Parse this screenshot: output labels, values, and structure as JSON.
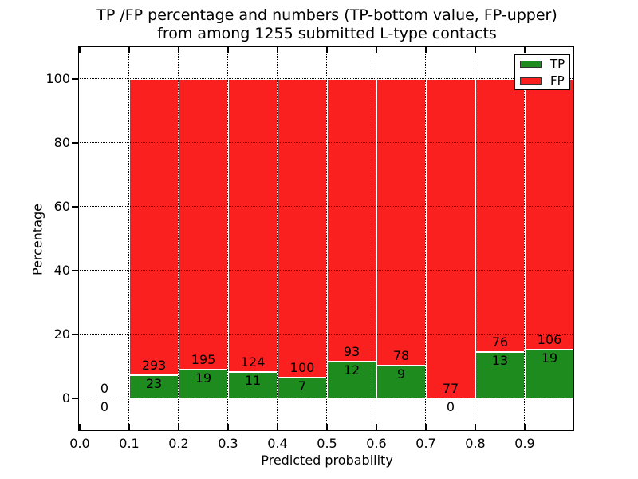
{
  "chart_data": {
    "type": "bar",
    "stacked": true,
    "title_line1": "TP /FP percentage and numbers (TP-bottom value, FP-upper)",
    "title_line2": "from among 1255 submitted L-type contacts",
    "xlabel": "Predicted probability",
    "ylabel": "Percentage",
    "total_submitted_contacts": 1255,
    "x_tick_labels": [
      "0.0",
      "0.1",
      "0.2",
      "0.3",
      "0.4",
      "0.5",
      "0.6",
      "0.7",
      "0.8",
      "0.9"
    ],
    "y_tick_values": [
      0,
      20,
      40,
      60,
      80,
      100
    ],
    "xlim": [
      0.0,
      1.0
    ],
    "ylim": [
      -10,
      110
    ],
    "grid": "dotted, both axes, drawn over bars",
    "bar_width": 0.1,
    "legend": {
      "position": "upper right",
      "entries": [
        {
          "label": "TP",
          "color": "#1e8b1e"
        },
        {
          "label": "FP",
          "color": "#fb2020"
        }
      ]
    },
    "bins": [
      {
        "x_start": 0.0,
        "x_end": 0.1,
        "tp": 0,
        "fp": 0,
        "tp_pct": 0.0,
        "fp_pct": 0.0,
        "bar": false
      },
      {
        "x_start": 0.1,
        "x_end": 0.2,
        "tp": 23,
        "fp": 293,
        "tp_pct": 7.28,
        "fp_pct": 92.72,
        "bar": true
      },
      {
        "x_start": 0.2,
        "x_end": 0.3,
        "tp": 19,
        "fp": 195,
        "tp_pct": 8.88,
        "fp_pct": 91.12,
        "bar": true
      },
      {
        "x_start": 0.3,
        "x_end": 0.4,
        "tp": 11,
        "fp": 124,
        "tp_pct": 8.15,
        "fp_pct": 91.85,
        "bar": true
      },
      {
        "x_start": 0.4,
        "x_end": 0.5,
        "tp": 7,
        "fp": 100,
        "tp_pct": 6.54,
        "fp_pct": 93.46,
        "bar": true
      },
      {
        "x_start": 0.5,
        "x_end": 0.6,
        "tp": 12,
        "fp": 93,
        "tp_pct": 11.43,
        "fp_pct": 88.57,
        "bar": true
      },
      {
        "x_start": 0.6,
        "x_end": 0.7,
        "tp": 9,
        "fp": 78,
        "tp_pct": 10.34,
        "fp_pct": 89.66,
        "bar": true
      },
      {
        "x_start": 0.7,
        "x_end": 0.8,
        "tp": 0,
        "fp": 77,
        "tp_pct": 0.0,
        "fp_pct": 100.0,
        "bar": true
      },
      {
        "x_start": 0.8,
        "x_end": 0.9,
        "tp": 13,
        "fp": 76,
        "tp_pct": 14.61,
        "fp_pct": 85.39,
        "bar": true
      },
      {
        "x_start": 0.9,
        "x_end": 1.0,
        "tp": 19,
        "fp": 106,
        "tp_pct": 15.2,
        "fp_pct": 84.8,
        "bar": true
      }
    ],
    "colors": {
      "tp": "#1e8b1e",
      "fp": "#fb2020",
      "grid": "#000000",
      "frame": "#000000",
      "background": "#ffffff",
      "bar_edge": "#ffffff"
    }
  }
}
